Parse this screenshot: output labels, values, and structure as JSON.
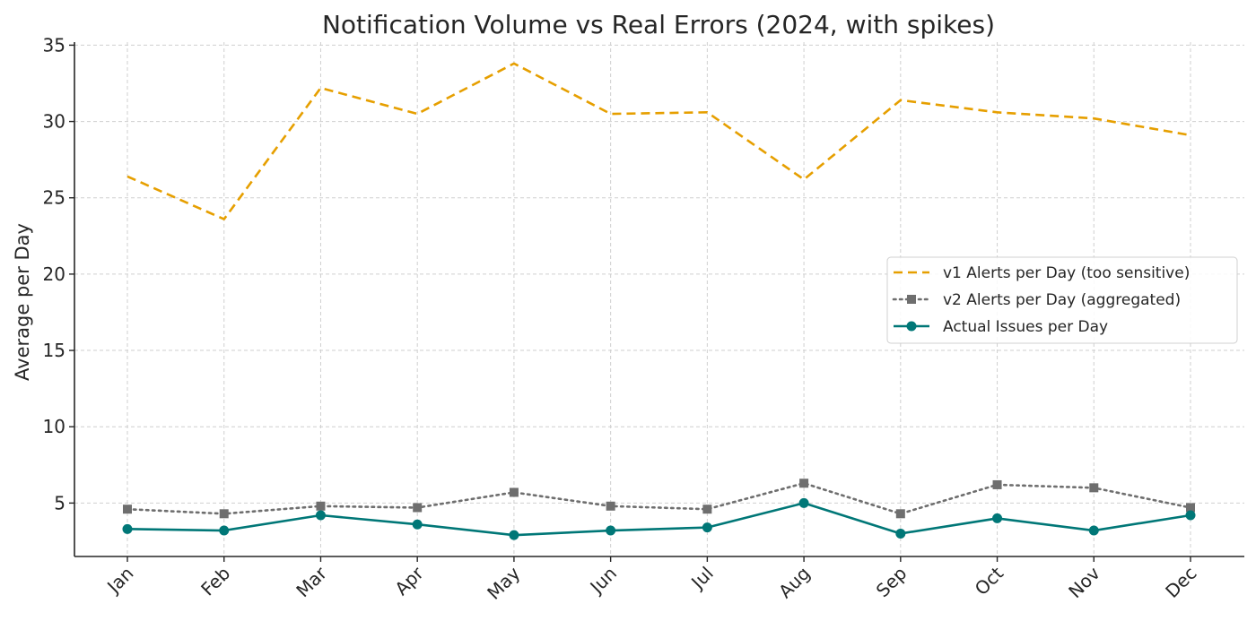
{
  "chart_data": {
    "type": "line",
    "title": "Notification Volume vs Real Errors (2024, with spikes)",
    "xlabel": "",
    "ylabel": "Average per Day",
    "categories": [
      "Jan",
      "Feb",
      "Mar",
      "Apr",
      "May",
      "Jun",
      "Jul",
      "Aug",
      "Sep",
      "Oct",
      "Nov",
      "Dec"
    ],
    "ylim": [
      1.5,
      35.2
    ],
    "yticks": [
      5,
      10,
      15,
      20,
      25,
      30,
      35
    ],
    "grid": true,
    "legend_position": "center-right",
    "series": [
      {
        "name": "v1 Alerts per Day (too sensitive)",
        "color": "#E69F00",
        "line_style": "dashed",
        "marker": "none",
        "values": [
          26.4,
          23.6,
          32.2,
          30.5,
          33.8,
          30.5,
          30.6,
          26.2,
          31.4,
          30.6,
          30.2,
          29.1
        ]
      },
      {
        "name": "v2 Alerts per Day (aggregated)",
        "color": "#6E6E6E",
        "line_style": "dotted",
        "marker": "square",
        "values": [
          4.6,
          4.3,
          4.8,
          4.7,
          5.7,
          4.8,
          4.6,
          6.3,
          4.3,
          6.2,
          6.0,
          4.7
        ]
      },
      {
        "name": "Actual Issues per Day",
        "color": "#007777",
        "line_style": "solid",
        "marker": "circle",
        "values": [
          3.3,
          3.2,
          4.2,
          3.6,
          2.9,
          3.2,
          3.4,
          5.0,
          3.0,
          4.0,
          3.2,
          4.2
        ]
      }
    ]
  }
}
